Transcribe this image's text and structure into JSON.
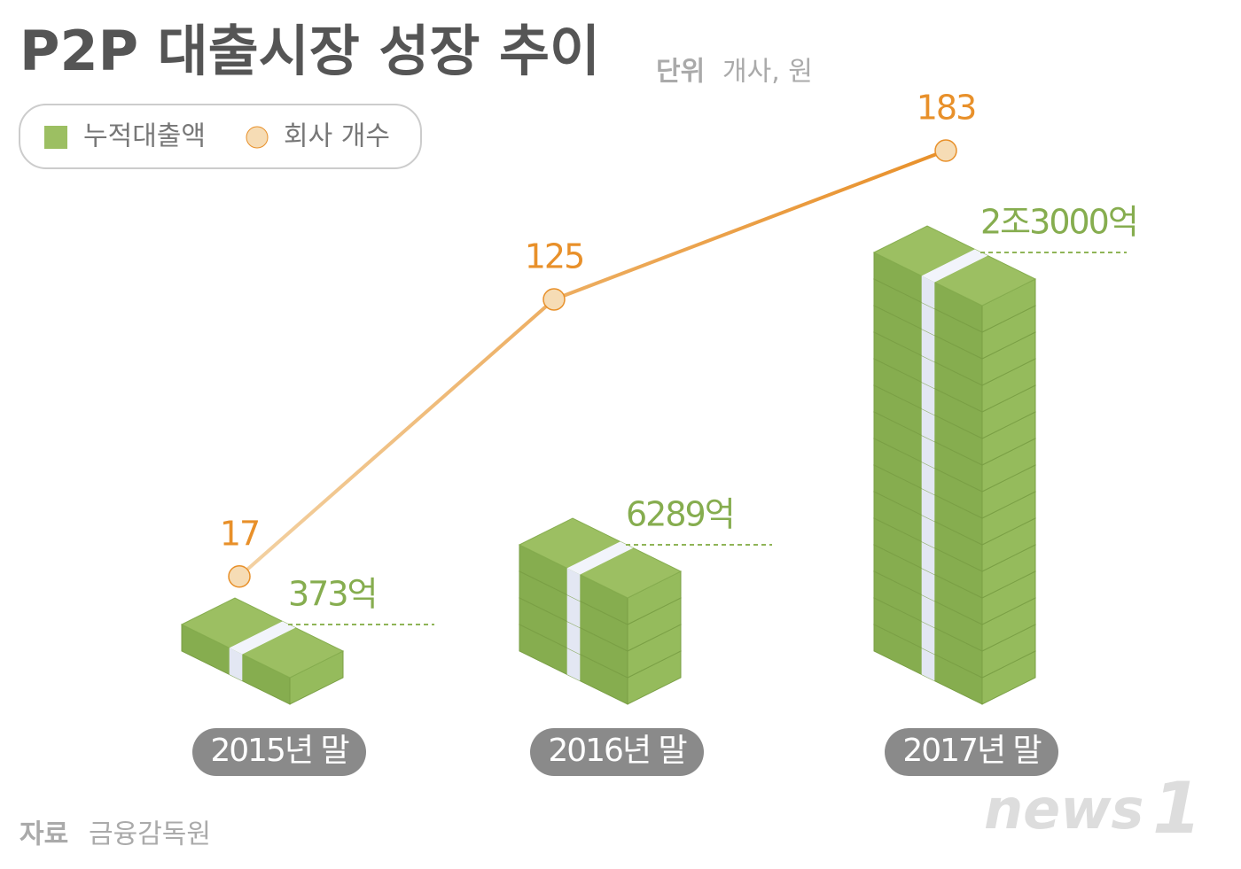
{
  "chart_data": {
    "type": "stack-line",
    "title": "P2P 대출시장 성장 추이",
    "unit_label": "단위",
    "unit": "개사, 원",
    "categories": [
      "2015년 말",
      "2016년 말",
      "2017년 말"
    ],
    "series": [
      {
        "name": "누적대출액",
        "color": "#9cbf62",
        "values": [
          373,
          6289,
          23000
        ],
        "value_labels": [
          "373억",
          "6289억",
          "2조3000억"
        ]
      },
      {
        "name": "회사 개수",
        "color": "#e8902a",
        "values": [
          17,
          125,
          183
        ]
      }
    ],
    "source_label": "자료",
    "source": "금융감독원",
    "logo": {
      "word": "news",
      "digit": "1"
    }
  }
}
